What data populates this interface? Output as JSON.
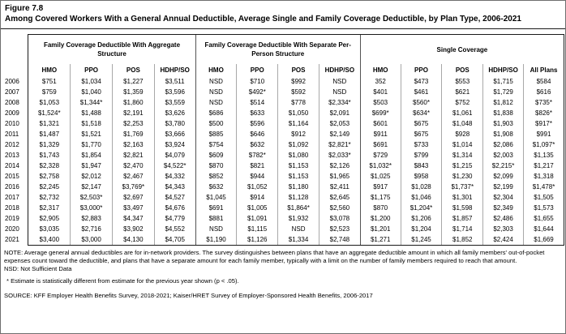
{
  "figure": {
    "label": "Figure 7.8",
    "title": "Among Covered Workers With a General Annual Deductible, Average Single and Family Coverage Deductible, by Plan Type, 2006-2021"
  },
  "table": {
    "groups": [
      {
        "label": "Family Coverage Deductible With Aggregate Structure",
        "columns": [
          "HMO",
          "PPO",
          "POS",
          "HDHP/SO"
        ]
      },
      {
        "label": "Family Coverage Deductible With Separate Per-Person Structure",
        "columns": [
          "HMO",
          "PPO",
          "POS",
          "HDHP/SO"
        ]
      },
      {
        "label": "Single Coverage",
        "columns": [
          "HMO",
          "PPO",
          "POS",
          "HDHP/SO",
          "All Plans"
        ]
      }
    ],
    "rows": [
      {
        "year": "2006",
        "values": [
          "$751",
          "$1,034",
          "$1,227",
          "$3,511",
          "NSD",
          "$710",
          "$992",
          "NSD",
          "352",
          "$473",
          "$553",
          "$1,715",
          "$584"
        ]
      },
      {
        "year": "2007",
        "values": [
          "$759",
          "$1,040",
          "$1,359",
          "$3,596",
          "NSD",
          "$492*",
          "$592",
          "NSD",
          "$401",
          "$461",
          "$621",
          "$1,729",
          "$616"
        ]
      },
      {
        "year": "2008",
        "values": [
          "$1,053",
          "$1,344*",
          "$1,860",
          "$3,559",
          "NSD",
          "$514",
          "$778",
          "$2,334*",
          "$503",
          "$560*",
          "$752",
          "$1,812",
          "$735*"
        ]
      },
      {
        "year": "2009",
        "values": [
          "$1,524*",
          "$1,488",
          "$2,191",
          "$3,626",
          "$686",
          "$633",
          "$1,050",
          "$2,091",
          "$699*",
          "$634*",
          "$1,061",
          "$1,838",
          "$826*"
        ]
      },
      {
        "year": "2010",
        "values": [
          "$1,321",
          "$1,518",
          "$2,253",
          "$3,780",
          "$500",
          "$596",
          "$1,164",
          "$2,053",
          "$601",
          "$675",
          "$1,048",
          "$1,903",
          "$917*"
        ]
      },
      {
        "year": "2011",
        "values": [
          "$1,487",
          "$1,521",
          "$1,769",
          "$3,666",
          "$885",
          "$646",
          "$912",
          "$2,149",
          "$911",
          "$675",
          "$928",
          "$1,908",
          "$991"
        ]
      },
      {
        "year": "2012",
        "values": [
          "$1,329",
          "$1,770",
          "$2,163",
          "$3,924",
          "$754",
          "$632",
          "$1,092",
          "$2,821*",
          "$691",
          "$733",
          "$1,014",
          "$2,086",
          "$1,097*"
        ]
      },
      {
        "year": "2013",
        "values": [
          "$1,743",
          "$1,854",
          "$2,821",
          "$4,079",
          "$609",
          "$782*",
          "$1,080",
          "$2,033*",
          "$729",
          "$799",
          "$1,314",
          "$2,003",
          "$1,135"
        ]
      },
      {
        "year": "2014",
        "values": [
          "$2,328",
          "$1,947",
          "$2,470",
          "$4,522*",
          "$870",
          "$821",
          "$1,153",
          "$2,126",
          "$1,032*",
          "$843",
          "$1,215",
          "$2,215*",
          "$1,217"
        ]
      },
      {
        "year": "2015",
        "values": [
          "$2,758",
          "$2,012",
          "$2,467",
          "$4,332",
          "$852",
          "$944",
          "$1,153",
          "$1,965",
          "$1,025",
          "$958",
          "$1,230",
          "$2,099",
          "$1,318"
        ]
      },
      {
        "year": "2016",
        "values": [
          "$2,245",
          "$2,147",
          "$3,769*",
          "$4,343",
          "$632",
          "$1,052",
          "$1,180",
          "$2,411",
          "$917",
          "$1,028",
          "$1,737*",
          "$2,199",
          "$1,478*"
        ]
      },
      {
        "year": "2017",
        "values": [
          "$2,732",
          "$2,503*",
          "$2,697",
          "$4,527",
          "$1,045",
          "$914",
          "$1,128",
          "$2,645",
          "$1,175",
          "$1,046",
          "$1,301",
          "$2,304",
          "$1,505"
        ]
      },
      {
        "year": "2018",
        "values": [
          "$2,317",
          "$3,000*",
          "$3,497",
          "$4,676",
          "$691",
          "$1,005",
          "$1,864*",
          "$2,560",
          "$870",
          "$1,204*",
          "$1,598",
          "$2,349",
          "$1,573"
        ]
      },
      {
        "year": "2019",
        "values": [
          "$2,905",
          "$2,883",
          "$4,347",
          "$4,779",
          "$881",
          "$1,091",
          "$1,932",
          "$3,078",
          "$1,200",
          "$1,206",
          "$1,857",
          "$2,486",
          "$1,655"
        ]
      },
      {
        "year": "2020",
        "values": [
          "$3,035",
          "$2,716",
          "$3,902",
          "$4,552",
          "NSD",
          "$1,115",
          "NSD",
          "$2,523",
          "$1,201",
          "$1,204",
          "$1,714",
          "$2,303",
          "$1,644"
        ]
      },
      {
        "year": "2021",
        "values": [
          "$3,400",
          "$3,000",
          "$4,130",
          "$4,705",
          "$1,190",
          "$1,126",
          "$1,334",
          "$2,748",
          "$1,271",
          "$1,245",
          "$1,852",
          "$2,424",
          "$1,669"
        ]
      }
    ]
  },
  "notes": {
    "note": "NOTE: Average general annual deductibles are for in-network providers. The survey distinguishes between plans that have an aggregate deductible amount in which all family members' out-of-pocket expenses count toward the deductible, and plans that have a separate amount for each family member, typically with a limit on the number of family members required to reach that amount.",
    "nsd": "NSD: Not Sufficient Data",
    "asterisk": "* Estimate is statistically different from estimate for the previous year shown (p < .05).",
    "source": "SOURCE: KFF Employer Health Benefits Survey, 2018-2021; Kaiser/HRET Survey of Employer-Sponsored Health Benefits, 2006-2017"
  }
}
